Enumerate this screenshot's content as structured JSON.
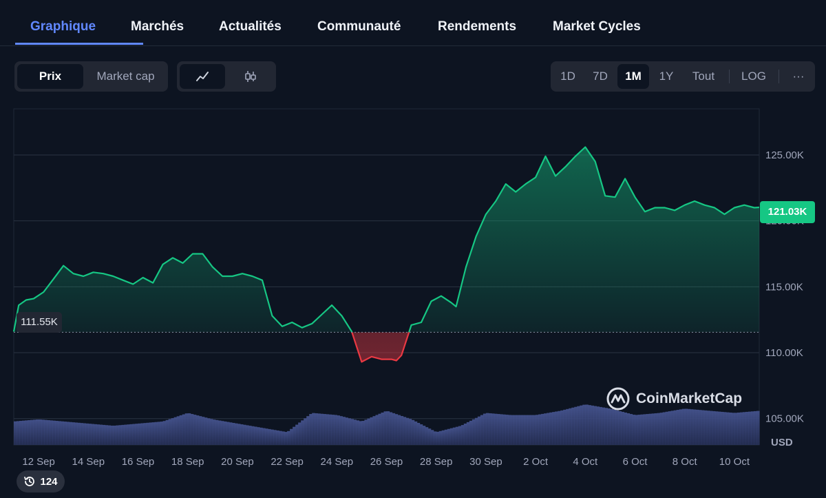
{
  "tabs": [
    {
      "label": "Graphique",
      "active": true
    },
    {
      "label": "Marchés"
    },
    {
      "label": "Actualités"
    },
    {
      "label": "Communauté"
    },
    {
      "label": "Rendements"
    },
    {
      "label": "Market Cycles"
    }
  ],
  "toolbar": {
    "metric_options": [
      "Prix",
      "Market cap"
    ],
    "metric_selected": "Prix",
    "chart_types": [
      "line-chart-icon",
      "candlestick-icon"
    ],
    "chart_type_selected": "line-chart-icon",
    "ranges": [
      "1D",
      "7D",
      "1M",
      "1Y",
      "Tout"
    ],
    "range_selected": "1M",
    "log_label": "LOG",
    "more_label": "···"
  },
  "colors": {
    "up": "#16c784",
    "down": "#ea3943",
    "accent": "#6188ff",
    "volume": "#3b4a80"
  },
  "watermark": "CoinMarketCap",
  "history_count": "124",
  "chart_data": {
    "type": "area",
    "title": "",
    "ylabel": "USD",
    "currency_label": "USD",
    "ylim": [
      103000,
      128500
    ],
    "y_ticks": [
      105000,
      110000,
      115000,
      120000,
      125000
    ],
    "y_tick_labels": [
      "105.00K",
      "110.00K",
      "115.00K",
      "120.00K",
      "125.00K"
    ],
    "x_ticks": [
      {
        "t": 1,
        "label": "12 Sep"
      },
      {
        "t": 3,
        "label": "14 Sep"
      },
      {
        "t": 5,
        "label": "16 Sep"
      },
      {
        "t": 7,
        "label": "18 Sep"
      },
      {
        "t": 9,
        "label": "20 Sep"
      },
      {
        "t": 11,
        "label": "22 Sep"
      },
      {
        "t": 13,
        "label": "24 Sep"
      },
      {
        "t": 15,
        "label": "26 Sep"
      },
      {
        "t": 17,
        "label": "28 Sep"
      },
      {
        "t": 19,
        "label": "30 Sep"
      },
      {
        "t": 21,
        "label": "2 Oct"
      },
      {
        "t": 23,
        "label": "4 Oct"
      },
      {
        "t": 25,
        "label": "6 Oct"
      },
      {
        "t": 27,
        "label": "8 Oct"
      },
      {
        "t": 29,
        "label": "10 Oct"
      }
    ],
    "reference_value": 111550,
    "reference_label": "111.55K",
    "last_value": 121030,
    "last_label": "121.03K",
    "series": [
      {
        "x": [
          0,
          0.2,
          0.5,
          0.8,
          1.2,
          1.6,
          2.0,
          2.4,
          2.8,
          3.2,
          3.6,
          4.0,
          4.4,
          4.8,
          5.2,
          5.6,
          6.0,
          6.4,
          6.8,
          7.2,
          7.6,
          8.0,
          8.4,
          8.8,
          9.2,
          9.6,
          10.0,
          10.4,
          10.8,
          11.2,
          11.6,
          12.0,
          12.4,
          12.8,
          13.2,
          13.6,
          14.0,
          14.4,
          14.8,
          15.2,
          15.4,
          15.6,
          16.0,
          16.4,
          16.8,
          17.2,
          17.6,
          17.8,
          18.2,
          18.6,
          19.0,
          19.4,
          19.8,
          20.2,
          20.6,
          21.0,
          21.4,
          21.8,
          22.2,
          22.6,
          23.0,
          23.4,
          23.8,
          24.2,
          24.6,
          25.0,
          25.4,
          25.8,
          26.2,
          26.6,
          27.0,
          27.4,
          27.8,
          28.2,
          28.6,
          29.0,
          29.4,
          29.8,
          30.0
        ],
        "y": [
          111600,
          113600,
          114000,
          114100,
          114600,
          115600,
          116600,
          116000,
          115800,
          116100,
          116000,
          115800,
          115500,
          115200,
          115700,
          115300,
          116700,
          117200,
          116800,
          117500,
          117500,
          116500,
          115800,
          115800,
          116000,
          115800,
          115500,
          112800,
          112000,
          112300,
          111900,
          112200,
          112900,
          113600,
          112800,
          111600,
          109300,
          109700,
          109500,
          109500,
          109400,
          109800,
          112100,
          112300,
          113900,
          114300,
          113800,
          113500,
          116500,
          118800,
          120500,
          121500,
          122800,
          122200,
          122800,
          123300,
          124900,
          123400,
          124100,
          124900,
          125600,
          124500,
          121900,
          121800,
          123200,
          121800,
          120700,
          121000,
          121000,
          120800,
          121200,
          121500,
          121200,
          121000,
          120500,
          121000,
          121200,
          121000,
          121030
        ]
      }
    ],
    "volume": {
      "x": [
        0,
        1,
        2,
        3,
        4,
        5,
        6,
        7,
        8,
        9,
        10,
        11,
        12,
        13,
        14,
        15,
        16,
        17,
        18,
        19,
        20,
        21,
        22,
        23,
        24,
        25,
        26,
        27,
        28,
        29,
        30
      ],
      "values": [
        0.55,
        0.6,
        0.55,
        0.5,
        0.45,
        0.5,
        0.55,
        0.75,
        0.6,
        0.5,
        0.4,
        0.3,
        0.75,
        0.7,
        0.55,
        0.8,
        0.6,
        0.3,
        0.45,
        0.75,
        0.7,
        0.7,
        0.8,
        0.95,
        0.85,
        0.7,
        0.75,
        0.85,
        0.8,
        0.75,
        0.8
      ]
    }
  }
}
